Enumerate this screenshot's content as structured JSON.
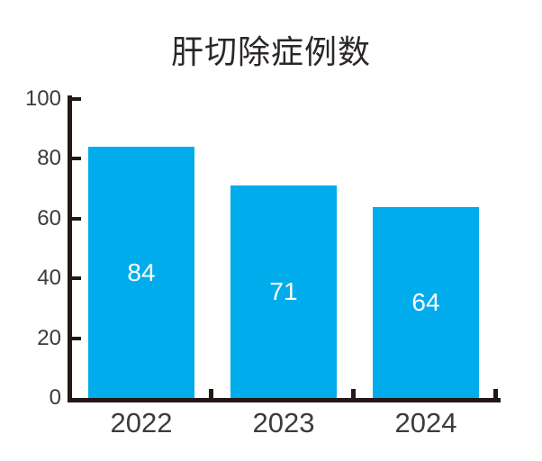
{
  "chart_data": {
    "type": "bar",
    "title": "肝切除症例数",
    "categories": [
      "2022",
      "2023",
      "2024"
    ],
    "values": [
      84,
      71,
      64
    ],
    "bar_labels": [
      "84",
      "71",
      "64"
    ],
    "xlabel": "",
    "ylabel": "",
    "ylim": [
      0,
      100
    ],
    "yticks": [
      0,
      20,
      40,
      60,
      80,
      100
    ],
    "grid": false,
    "legend_position": "none",
    "colors": {
      "bar": "#00acec",
      "axis": "#231815",
      "title_text": "#2b2725",
      "tick_text": "#3e3a39",
      "value_label_text": "#ffffff"
    }
  }
}
